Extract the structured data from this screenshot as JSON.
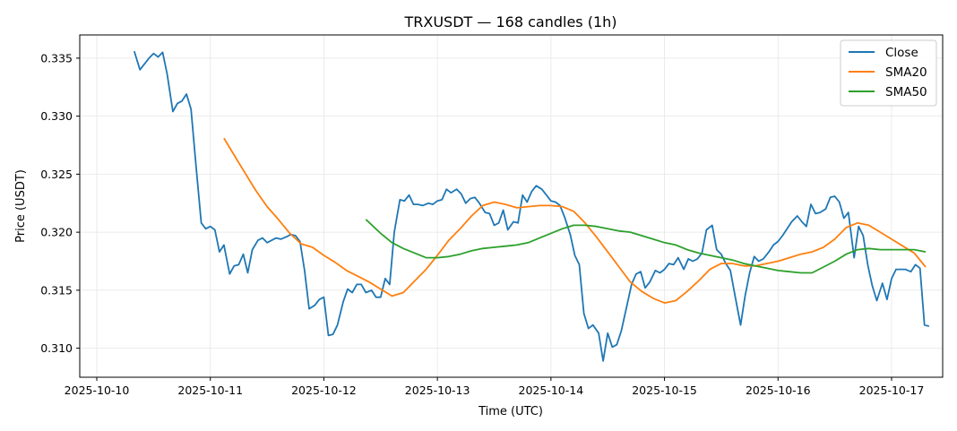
{
  "chart_data": {
    "type": "line",
    "title": "TRXUSDT — 168 candles (1h)",
    "xlabel": "Time (UTC)",
    "ylabel": "Price (USDT)",
    "x_tick_labels": [
      "2025-10-10",
      "2025-10-11",
      "2025-10-12",
      "2025-10-13",
      "2025-10-14",
      "2025-10-15",
      "2025-10-16",
      "2025-10-17"
    ],
    "y_tick_labels": [
      "0.310",
      "0.315",
      "0.320",
      "0.325",
      "0.330",
      "0.335"
    ],
    "y_ticks": [
      0.31,
      0.315,
      0.32,
      0.325,
      0.33,
      0.335
    ],
    "ylim": [
      0.3075,
      0.337
    ],
    "xlim_days_from_2025_10_10": [
      -0.15,
      7.45
    ],
    "grid": true,
    "legend_position": "top-right",
    "series": [
      {
        "name": "Close",
        "color": "#1f77b4",
        "points": [
          [
            0.33,
            0.3356
          ],
          [
            0.38,
            0.334
          ],
          [
            0.46,
            0.335
          ],
          [
            0.5,
            0.3354
          ],
          [
            0.54,
            0.3351
          ],
          [
            0.58,
            0.3355
          ],
          [
            0.62,
            0.3336
          ],
          [
            0.67,
            0.3304
          ],
          [
            0.71,
            0.3311
          ],
          [
            0.75,
            0.3313
          ],
          [
            0.79,
            0.3319
          ],
          [
            0.83,
            0.3306
          ],
          [
            0.87,
            0.3262
          ],
          [
            0.92,
            0.3208
          ],
          [
            0.96,
            0.3203
          ],
          [
            1.0,
            0.3205
          ],
          [
            1.04,
            0.3202
          ],
          [
            1.08,
            0.3183
          ],
          [
            1.12,
            0.3189
          ],
          [
            1.17,
            0.3164
          ],
          [
            1.21,
            0.3171
          ],
          [
            1.25,
            0.3172
          ],
          [
            1.29,
            0.3181
          ],
          [
            1.33,
            0.3165
          ],
          [
            1.37,
            0.3185
          ],
          [
            1.42,
            0.3193
          ],
          [
            1.46,
            0.3195
          ],
          [
            1.5,
            0.3191
          ],
          [
            1.54,
            0.3193
          ],
          [
            1.58,
            0.3195
          ],
          [
            1.62,
            0.3194
          ],
          [
            1.67,
            0.3196
          ],
          [
            1.71,
            0.3198
          ],
          [
            1.75,
            0.3197
          ],
          [
            1.79,
            0.3192
          ],
          [
            1.83,
            0.3167
          ],
          [
            1.87,
            0.3134
          ],
          [
            1.92,
            0.3137
          ],
          [
            1.96,
            0.3142
          ],
          [
            2.0,
            0.3144
          ],
          [
            2.04,
            0.3111
          ],
          [
            2.08,
            0.3112
          ],
          [
            2.12,
            0.312
          ],
          [
            2.17,
            0.314
          ],
          [
            2.21,
            0.3151
          ],
          [
            2.25,
            0.3148
          ],
          [
            2.29,
            0.3155
          ],
          [
            2.33,
            0.3155
          ],
          [
            2.37,
            0.3148
          ],
          [
            2.42,
            0.315
          ],
          [
            2.46,
            0.3144
          ],
          [
            2.5,
            0.3144
          ],
          [
            2.54,
            0.316
          ],
          [
            2.58,
            0.3155
          ],
          [
            2.62,
            0.32
          ],
          [
            2.67,
            0.3228
          ],
          [
            2.71,
            0.3227
          ],
          [
            2.75,
            0.3232
          ],
          [
            2.79,
            0.3224
          ],
          [
            2.83,
            0.3224
          ],
          [
            2.87,
            0.3223
          ],
          [
            2.92,
            0.3225
          ],
          [
            2.96,
            0.3224
          ],
          [
            3.0,
            0.3227
          ],
          [
            3.04,
            0.3228
          ],
          [
            3.08,
            0.3237
          ],
          [
            3.12,
            0.3234
          ],
          [
            3.17,
            0.3237
          ],
          [
            3.21,
            0.3233
          ],
          [
            3.25,
            0.3225
          ],
          [
            3.29,
            0.3229
          ],
          [
            3.33,
            0.323
          ],
          [
            3.37,
            0.3225
          ],
          [
            3.42,
            0.3217
          ],
          [
            3.46,
            0.3216
          ],
          [
            3.5,
            0.3206
          ],
          [
            3.54,
            0.3208
          ],
          [
            3.58,
            0.3219
          ],
          [
            3.62,
            0.3202
          ],
          [
            3.67,
            0.3209
          ],
          [
            3.71,
            0.3208
          ],
          [
            3.75,
            0.3232
          ],
          [
            3.79,
            0.3226
          ],
          [
            3.83,
            0.3235
          ],
          [
            3.87,
            0.324
          ],
          [
            3.92,
            0.3237
          ],
          [
            3.96,
            0.3232
          ],
          [
            4.0,
            0.3227
          ],
          [
            4.04,
            0.3226
          ],
          [
            4.08,
            0.3223
          ],
          [
            4.12,
            0.3213
          ],
          [
            4.17,
            0.3198
          ],
          [
            4.21,
            0.318
          ],
          [
            4.25,
            0.3172
          ],
          [
            4.29,
            0.313
          ],
          [
            4.33,
            0.3117
          ],
          [
            4.37,
            0.312
          ],
          [
            4.42,
            0.3113
          ],
          [
            4.46,
            0.3089
          ],
          [
            4.5,
            0.3113
          ],
          [
            4.54,
            0.3101
          ],
          [
            4.58,
            0.3103
          ],
          [
            4.62,
            0.3115
          ],
          [
            4.67,
            0.3137
          ],
          [
            4.71,
            0.3155
          ],
          [
            4.75,
            0.3164
          ],
          [
            4.79,
            0.3166
          ],
          [
            4.83,
            0.3152
          ],
          [
            4.87,
            0.3157
          ],
          [
            4.92,
            0.3167
          ],
          [
            4.96,
            0.3165
          ],
          [
            5.0,
            0.3168
          ],
          [
            5.04,
            0.3173
          ],
          [
            5.08,
            0.3172
          ],
          [
            5.12,
            0.3178
          ],
          [
            5.17,
            0.3168
          ],
          [
            5.21,
            0.3177
          ],
          [
            5.25,
            0.3175
          ],
          [
            5.29,
            0.3177
          ],
          [
            5.33,
            0.3182
          ],
          [
            5.37,
            0.3202
          ],
          [
            5.42,
            0.3206
          ],
          [
            5.46,
            0.3185
          ],
          [
            5.5,
            0.3181
          ],
          [
            5.54,
            0.3173
          ],
          [
            5.58,
            0.3167
          ],
          [
            5.62,
            0.3146
          ],
          [
            5.67,
            0.312
          ],
          [
            5.71,
            0.3145
          ],
          [
            5.75,
            0.3165
          ],
          [
            5.79,
            0.3179
          ],
          [
            5.83,
            0.3175
          ],
          [
            5.87,
            0.3177
          ],
          [
            5.92,
            0.3183
          ],
          [
            5.96,
            0.3189
          ],
          [
            6.0,
            0.3192
          ],
          [
            6.04,
            0.3197
          ],
          [
            6.08,
            0.3203
          ],
          [
            6.12,
            0.3209
          ],
          [
            6.17,
            0.3214
          ],
          [
            6.21,
            0.3209
          ],
          [
            6.25,
            0.3205
          ],
          [
            6.29,
            0.3224
          ],
          [
            6.33,
            0.3216
          ],
          [
            6.37,
            0.3217
          ],
          [
            6.42,
            0.322
          ],
          [
            6.46,
            0.323
          ],
          [
            6.5,
            0.3231
          ],
          [
            6.54,
            0.3226
          ],
          [
            6.58,
            0.3212
          ],
          [
            6.62,
            0.3217
          ],
          [
            6.67,
            0.3178
          ],
          [
            6.71,
            0.3205
          ],
          [
            6.75,
            0.3197
          ],
          [
            6.79,
            0.3172
          ],
          [
            6.83,
            0.3154
          ],
          [
            6.87,
            0.3141
          ],
          [
            6.92,
            0.3156
          ],
          [
            6.96,
            0.3142
          ],
          [
            7.0,
            0.316
          ],
          [
            7.04,
            0.3168
          ],
          [
            7.08,
            0.3168
          ],
          [
            7.12,
            0.3168
          ],
          [
            7.17,
            0.3166
          ],
          [
            7.21,
            0.3172
          ],
          [
            7.25,
            0.3169
          ],
          [
            7.29,
            0.312
          ],
          [
            7.33,
            0.3119
          ]
        ]
      },
      {
        "name": "SMA20",
        "color": "#ff7f0e",
        "points": [
          [
            1.12,
            0.3281
          ],
          [
            1.2,
            0.3268
          ],
          [
            1.3,
            0.3252
          ],
          [
            1.4,
            0.3236
          ],
          [
            1.5,
            0.3222
          ],
          [
            1.6,
            0.3211
          ],
          [
            1.7,
            0.3199
          ],
          [
            1.8,
            0.319
          ],
          [
            1.9,
            0.3187
          ],
          [
            2.0,
            0.318
          ],
          [
            2.1,
            0.3174
          ],
          [
            2.2,
            0.3167
          ],
          [
            2.3,
            0.3162
          ],
          [
            2.4,
            0.3157
          ],
          [
            2.5,
            0.3151
          ],
          [
            2.6,
            0.3145
          ],
          [
            2.7,
            0.3148
          ],
          [
            2.8,
            0.3158
          ],
          [
            2.9,
            0.3168
          ],
          [
            3.0,
            0.318
          ],
          [
            3.1,
            0.3193
          ],
          [
            3.2,
            0.3203
          ],
          [
            3.3,
            0.3214
          ],
          [
            3.4,
            0.3223
          ],
          [
            3.5,
            0.3226
          ],
          [
            3.6,
            0.3224
          ],
          [
            3.7,
            0.3221
          ],
          [
            3.8,
            0.3222
          ],
          [
            3.9,
            0.3223
          ],
          [
            4.0,
            0.3223
          ],
          [
            4.1,
            0.3222
          ],
          [
            4.2,
            0.3218
          ],
          [
            4.3,
            0.3208
          ],
          [
            4.4,
            0.3196
          ],
          [
            4.5,
            0.3183
          ],
          [
            4.6,
            0.317
          ],
          [
            4.7,
            0.3157
          ],
          [
            4.8,
            0.3149
          ],
          [
            4.9,
            0.3143
          ],
          [
            5.0,
            0.3139
          ],
          [
            5.1,
            0.3141
          ],
          [
            5.2,
            0.3149
          ],
          [
            5.3,
            0.3158
          ],
          [
            5.4,
            0.3168
          ],
          [
            5.5,
            0.3173
          ],
          [
            5.6,
            0.3173
          ],
          [
            5.7,
            0.3171
          ],
          [
            5.8,
            0.3171
          ],
          [
            5.9,
            0.3173
          ],
          [
            6.0,
            0.3175
          ],
          [
            6.1,
            0.3178
          ],
          [
            6.2,
            0.3181
          ],
          [
            6.3,
            0.3183
          ],
          [
            6.4,
            0.3187
          ],
          [
            6.5,
            0.3194
          ],
          [
            6.6,
            0.3204
          ],
          [
            6.7,
            0.3208
          ],
          [
            6.8,
            0.3206
          ],
          [
            6.9,
            0.32
          ],
          [
            7.0,
            0.3194
          ],
          [
            7.1,
            0.3188
          ],
          [
            7.2,
            0.3182
          ],
          [
            7.3,
            0.317
          ]
        ]
      },
      {
        "name": "SMA50",
        "color": "#2ca02c",
        "points": [
          [
            2.37,
            0.3211
          ],
          [
            2.5,
            0.3199
          ],
          [
            2.6,
            0.3191
          ],
          [
            2.7,
            0.3186
          ],
          [
            2.8,
            0.3182
          ],
          [
            2.9,
            0.3178
          ],
          [
            3.0,
            0.3178
          ],
          [
            3.1,
            0.3179
          ],
          [
            3.2,
            0.3181
          ],
          [
            3.3,
            0.3184
          ],
          [
            3.4,
            0.3186
          ],
          [
            3.5,
            0.3187
          ],
          [
            3.6,
            0.3188
          ],
          [
            3.7,
            0.3189
          ],
          [
            3.8,
            0.3191
          ],
          [
            3.9,
            0.3195
          ],
          [
            4.0,
            0.3199
          ],
          [
            4.1,
            0.3203
          ],
          [
            4.2,
            0.3206
          ],
          [
            4.3,
            0.3206
          ],
          [
            4.4,
            0.3205
          ],
          [
            4.5,
            0.3203
          ],
          [
            4.6,
            0.3201
          ],
          [
            4.7,
            0.32
          ],
          [
            4.8,
            0.3197
          ],
          [
            4.9,
            0.3194
          ],
          [
            5.0,
            0.3191
          ],
          [
            5.1,
            0.3189
          ],
          [
            5.2,
            0.3185
          ],
          [
            5.3,
            0.3182
          ],
          [
            5.4,
            0.318
          ],
          [
            5.5,
            0.3178
          ],
          [
            5.6,
            0.3176
          ],
          [
            5.7,
            0.3173
          ],
          [
            5.8,
            0.3171
          ],
          [
            5.9,
            0.3169
          ],
          [
            6.0,
            0.3167
          ],
          [
            6.1,
            0.3166
          ],
          [
            6.2,
            0.3165
          ],
          [
            6.3,
            0.3165
          ],
          [
            6.4,
            0.317
          ],
          [
            6.5,
            0.3175
          ],
          [
            6.6,
            0.3181
          ],
          [
            6.7,
            0.3185
          ],
          [
            6.8,
            0.3186
          ],
          [
            6.9,
            0.3185
          ],
          [
            7.0,
            0.3185
          ],
          [
            7.1,
            0.3185
          ],
          [
            7.2,
            0.3185
          ],
          [
            7.3,
            0.3183
          ]
        ]
      }
    ]
  }
}
